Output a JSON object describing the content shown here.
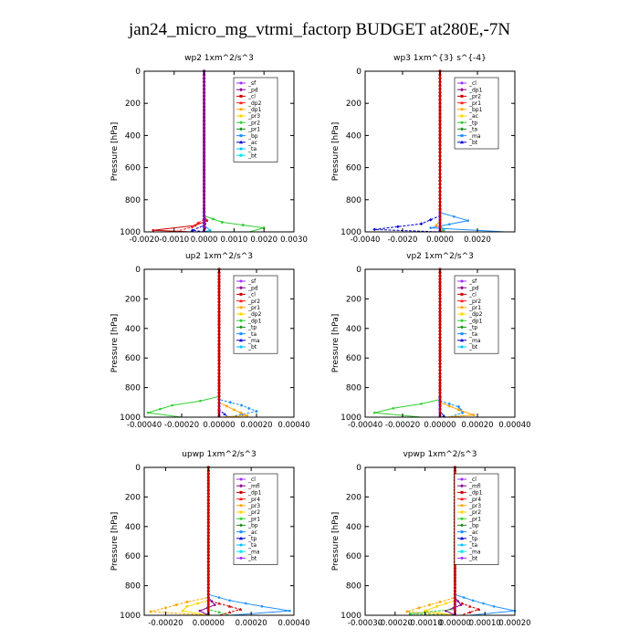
{
  "figure_title": "jan24_micro_mg_vtrmi_factorp  BUDGET at280E,-7N",
  "colors": {
    "legend_palette": [
      "#9b30ff",
      "#8b008b",
      "#cc0000",
      "#ff2020",
      "#ffa500",
      "#ffd700",
      "#32cd32",
      "#228b22",
      "#1e90ff",
      "#0000cd",
      "#00bfff",
      "#00e5ee"
    ]
  },
  "chart_data": [
    {
      "type": "line",
      "title": "wp2  1xm^2/s^3",
      "ylabel": "Pressure [hPa]",
      "ylim": [
        0,
        1000
      ],
      "y_inverted": true,
      "xlim": [
        -0.002,
        0.003
      ],
      "xticks": [
        "-0.0020",
        "-0.0010",
        "0.0000",
        "0.0010",
        "0.0020",
        "0.0030"
      ],
      "xtick_values": [
        -0.002,
        -0.001,
        0,
        0.001,
        0.002,
        0.003
      ],
      "yticks": [
        "0",
        "200",
        "400",
        "600",
        "800",
        "1000"
      ],
      "ytick_values": [
        0,
        200,
        400,
        600,
        800,
        1000
      ],
      "legend": [
        "_sf",
        "_pd",
        "_cl",
        "_dp2",
        "_dp1",
        "_pr3",
        "_pr2",
        "_pr1",
        "_bp",
        "_ac",
        "_ta",
        "_bt"
      ],
      "series": [
        {
          "name": "_dp1",
          "color": "#cc0000",
          "points": [
            [
              0,
              0
            ],
            [
              0,
              900
            ],
            [
              0.0001,
              930
            ],
            [
              -0.0003,
              960
            ],
            [
              -0.0017,
              990
            ],
            [
              -0.0004,
              1000
            ]
          ]
        },
        {
          "name": "_pr3",
          "color": "#ff2020",
          "points": [
            [
              0,
              0
            ],
            [
              0,
              920
            ],
            [
              -0.0004,
              970
            ],
            [
              -0.001,
              1000
            ]
          ]
        },
        {
          "name": "_ac",
          "color": "#32cd32",
          "points": [
            [
              0,
              0
            ],
            [
              0,
              900
            ],
            [
              0.0006,
              940
            ],
            [
              0.002,
              975
            ],
            [
              0.0015,
              1000
            ]
          ]
        },
        {
          "name": "_ta",
          "color": "#0000cd",
          "points": [
            [
              0,
              0
            ],
            [
              0,
              960
            ],
            [
              -0.0004,
              990
            ],
            [
              0,
              1000
            ]
          ]
        },
        {
          "name": "_bt",
          "color": "#00bfff",
          "points": [
            [
              0,
              0
            ],
            [
              0,
              960
            ],
            [
              0.0002,
              990
            ],
            [
              0,
              1000
            ]
          ]
        },
        {
          "name": "_pd",
          "color": "#8b008b",
          "points": [
            [
              0,
              0
            ],
            [
              0,
              900
            ],
            [
              3e-05,
              950
            ],
            [
              3e-05,
              1000
            ]
          ]
        }
      ]
    },
    {
      "type": "line",
      "title": "wp3  1xm^{3} s^{-4}",
      "ylabel": "Pressure [hPa]",
      "ylim": [
        0,
        1000
      ],
      "y_inverted": true,
      "xlim": [
        -0.004,
        0.004
      ],
      "xticks": [
        "-0.0040",
        "-0.0020",
        "0.0000",
        "0.0020"
      ],
      "xtick_values": [
        -0.004,
        -0.002,
        0,
        0.002
      ],
      "yticks": [
        "0",
        "200",
        "400",
        "600",
        "800",
        "1000"
      ],
      "ytick_values": [
        0,
        200,
        400,
        600,
        800,
        1000
      ],
      "legend": [
        "_cl",
        "_dp1",
        "_pr2",
        "_pr1",
        "_bp1",
        "_ac",
        "_tp",
        "_ta",
        "_ma",
        "_bt"
      ],
      "series": [
        {
          "name": "_tp",
          "color": "#1e90ff",
          "points": [
            [
              0,
              0
            ],
            [
              0,
              880
            ],
            [
              0.0015,
              930
            ],
            [
              -0.0005,
              975
            ],
            [
              0.0035,
              1000
            ]
          ]
        },
        {
          "name": "_ta",
          "color": "#0000cd",
          "points": [
            [
              0,
              0
            ],
            [
              0,
              900
            ],
            [
              -0.001,
              950
            ],
            [
              -0.0035,
              985
            ],
            [
              0,
              1000
            ]
          ]
        },
        {
          "name": "_pr2",
          "color": "#ffa500",
          "points": [
            [
              0,
              0
            ],
            [
              0,
              930
            ],
            [
              -0.0002,
              960
            ],
            [
              0.0002,
              990
            ],
            [
              0,
              1000
            ]
          ]
        },
        {
          "name": "_bt",
          "color": "#00bfff",
          "points": [
            [
              0,
              0
            ],
            [
              0,
              960
            ],
            [
              0.0002,
              985
            ],
            [
              0,
              1000
            ]
          ]
        },
        {
          "name": "_dp1",
          "color": "#cc0000",
          "points": [
            [
              0,
              0
            ],
            [
              0,
              1000
            ]
          ]
        }
      ]
    },
    {
      "type": "line",
      "title": "up2  1xm^2/s^3",
      "ylabel": "Pressure [hPa]",
      "ylim": [
        0,
        1000
      ],
      "y_inverted": true,
      "xlim": [
        -0.0004,
        0.0004
      ],
      "xticks": [
        "-0.00040",
        "-0.00020",
        "0.00000",
        "0.00020",
        "0.00040"
      ],
      "xtick_values": [
        -0.0004,
        -0.0002,
        0,
        0.0002,
        0.0004
      ],
      "yticks": [
        "0",
        "200",
        "400",
        "600",
        "800",
        "1000"
      ],
      "ytick_values": [
        0,
        200,
        400,
        600,
        800,
        1000
      ],
      "legend": [
        "_sf",
        "_pd",
        "_cl",
        "_pr2",
        "_pr1",
        "_dp2",
        "_dp1",
        "_tp",
        "_ta",
        "_ma",
        "_bt"
      ],
      "series": [
        {
          "name": "_dp1",
          "color": "#32cd32",
          "points": [
            [
              0,
              0
            ],
            [
              0,
              860
            ],
            [
              -0.0001,
              890
            ],
            [
              -0.00025,
              920
            ],
            [
              -0.00038,
              970
            ],
            [
              -0.0002,
              1000
            ]
          ]
        },
        {
          "name": "_tp",
          "color": "#1e90ff",
          "points": [
            [
              0,
              0
            ],
            [
              0,
              880
            ],
            [
              0.00012,
              920
            ],
            [
              0.0002,
              960
            ],
            [
              5e-05,
              1000
            ]
          ]
        },
        {
          "name": "_pr2",
          "color": "#ffa500",
          "points": [
            [
              0,
              0
            ],
            [
              0,
              900
            ],
            [
              8e-05,
              950
            ],
            [
              0.00015,
              990
            ],
            [
              0,
              1000
            ]
          ]
        },
        {
          "name": "_ta",
          "color": "#0000cd",
          "points": [
            [
              0,
              0
            ],
            [
              0,
              950
            ],
            [
              3e-05,
              980
            ],
            [
              5e-05,
              1000
            ]
          ]
        },
        {
          "name": "_cl",
          "color": "#cc0000",
          "points": [
            [
              0,
              0
            ],
            [
              0,
              1000
            ]
          ]
        }
      ]
    },
    {
      "type": "line",
      "title": "vp2  1xm^2/s^3",
      "ylabel": "Pressure [hPa]",
      "ylim": [
        0,
        1000
      ],
      "y_inverted": true,
      "xlim": [
        -0.0004,
        0.0004
      ],
      "xticks": [
        "-0.00040",
        "-0.00020",
        "0.00000",
        "0.00020",
        "0.00040"
      ],
      "xtick_values": [
        -0.0004,
        -0.0002,
        0,
        0.0002,
        0.0004
      ],
      "yticks": [
        "0",
        "200",
        "400",
        "600",
        "800",
        "1000"
      ],
      "ytick_values": [
        0,
        200,
        400,
        600,
        800,
        1000
      ],
      "legend": [
        "_sf",
        "_pd",
        "_cl",
        "_pr2",
        "_pr1",
        "_dp2",
        "_dp1",
        "_tp",
        "_ta",
        "_ma",
        "_bt"
      ],
      "series": [
        {
          "name": "_dp1",
          "color": "#32cd32",
          "points": [
            [
              0,
              0
            ],
            [
              0,
              880
            ],
            [
              -0.0001,
              910
            ],
            [
              -0.00025,
              940
            ],
            [
              -0.00035,
              970
            ],
            [
              -0.0001,
              1000
            ]
          ]
        },
        {
          "name": "_tp",
          "color": "#1e90ff",
          "points": [
            [
              0,
              0
            ],
            [
              0,
              890
            ],
            [
              0.0001,
              930
            ],
            [
              0.00012,
              970
            ],
            [
              5e-05,
              1000
            ]
          ]
        },
        {
          "name": "_pr2",
          "color": "#ffa500",
          "points": [
            [
              0,
              0
            ],
            [
              0,
              900
            ],
            [
              0.0001,
              950
            ],
            [
              0.00018,
              985
            ],
            [
              3e-05,
              1000
            ]
          ]
        },
        {
          "name": "_ta",
          "color": "#0000cd",
          "points": [
            [
              0,
              0
            ],
            [
              0,
              960
            ],
            [
              2e-05,
              990
            ],
            [
              3e-05,
              1000
            ]
          ]
        },
        {
          "name": "_cl",
          "color": "#cc0000",
          "points": [
            [
              0,
              0
            ],
            [
              0,
              1000
            ]
          ]
        }
      ]
    },
    {
      "type": "line",
      "title": "upwp  1xm^2/s^3",
      "ylabel": "Pressure [hPa]",
      "ylim": [
        0,
        1000
      ],
      "y_inverted": true,
      "xlim": [
        -0.0003,
        0.0004
      ],
      "xticks": [
        "-0.00020",
        "0.00000",
        "0.00020",
        "0.00040"
      ],
      "xtick_values": [
        -0.0002,
        0,
        0.0002,
        0.0004
      ],
      "yticks": [
        "0",
        "200",
        "400",
        "600",
        "800",
        "1000"
      ],
      "ytick_values": [
        0,
        200,
        400,
        600,
        800,
        1000
      ],
      "legend": [
        "_cl",
        "_mfl",
        "_dp1",
        "_pr4",
        "_pr3",
        "_pr2",
        "_pr1",
        "_bp",
        "_ac",
        "_tp",
        "_ta",
        "_ma",
        "_bt"
      ],
      "series": [
        {
          "name": "_tp",
          "color": "#1e90ff",
          "points": [
            [
              0,
              0
            ],
            [
              0,
              860
            ],
            [
              0.0001,
              900
            ],
            [
              0.00025,
              940
            ],
            [
              0.00038,
              970
            ],
            [
              0.0001,
              1000
            ]
          ]
        },
        {
          "name": "_pr2",
          "color": "#ffa500",
          "points": [
            [
              0,
              0
            ],
            [
              0,
              880
            ],
            [
              -0.0001,
              910
            ],
            [
              -0.0002,
              950
            ],
            [
              -0.00027,
              975
            ],
            [
              0,
              1000
            ]
          ]
        },
        {
          "name": "_pr1",
          "color": "#ffd700",
          "points": [
            [
              0,
              0
            ],
            [
              0,
              900
            ],
            [
              -0.0001,
              940
            ],
            [
              -0.00012,
              970
            ],
            [
              0,
              1000
            ]
          ]
        },
        {
          "name": "_dp1",
          "color": "#cc0000",
          "points": [
            [
              0,
              0
            ],
            [
              0,
              900
            ],
            [
              0.0001,
              940
            ],
            [
              0.00015,
              960
            ],
            [
              5e-05,
              1000
            ]
          ]
        },
        {
          "name": "_mfl",
          "color": "#8b008b",
          "points": [
            [
              0,
              0
            ],
            [
              0,
              880
            ],
            [
              3e-05,
              930
            ],
            [
              -4e-05,
              970
            ],
            [
              0,
              1000
            ]
          ]
        },
        {
          "name": "_ac",
          "color": "#32cd32",
          "points": [
            [
              0,
              0
            ],
            [
              0,
              960
            ],
            [
              0.0001,
              1000
            ]
          ]
        }
      ]
    },
    {
      "type": "line",
      "title": "vpwp  1xm^2/s^3",
      "ylabel": "Pressure [hPa]",
      "ylim": [
        0,
        1000
      ],
      "y_inverted": true,
      "xlim": [
        -0.0003,
        0.0002
      ],
      "xticks": [
        "-0.00030",
        "-0.00020",
        "-0.00010",
        "0.00000",
        "0.00010",
        "0.00020"
      ],
      "xtick_values": [
        -0.0003,
        -0.0002,
        -0.0001,
        0,
        0.0001,
        0.0002
      ],
      "yticks": [
        "0",
        "200",
        "400",
        "600",
        "800",
        "1000"
      ],
      "ytick_values": [
        0,
        200,
        400,
        600,
        800,
        1000
      ],
      "legend": [
        "_cl",
        "_mfl",
        "_dp1",
        "_pr4",
        "_pr3",
        "_pr2",
        "_pr1",
        "_bp",
        "_ac",
        "_tp",
        "_ta",
        "_ma",
        "_bt"
      ],
      "series": [
        {
          "name": "_tp",
          "color": "#1e90ff",
          "points": [
            [
              0,
              0
            ],
            [
              0,
              860
            ],
            [
              6e-05,
              900
            ],
            [
              0.00013,
              940
            ],
            [
              0.0002,
              970
            ],
            [
              5e-05,
              1000
            ]
          ]
        },
        {
          "name": "_pr2",
          "color": "#ffa500",
          "points": [
            [
              0,
              0
            ],
            [
              0,
              880
            ],
            [
              -5e-05,
              910
            ],
            [
              -0.00012,
              950
            ],
            [
              -0.00016,
              975
            ],
            [
              0,
              1000
            ]
          ]
        },
        {
          "name": "_pr1",
          "color": "#ffd700",
          "points": [
            [
              0,
              0
            ],
            [
              0,
              900
            ],
            [
              -6e-05,
              940
            ],
            [
              -0.0001,
              970
            ],
            [
              0,
              1000
            ]
          ]
        },
        {
          "name": "_dp1",
          "color": "#cc0000",
          "points": [
            [
              0,
              0
            ],
            [
              0,
              900
            ],
            [
              5e-05,
              940
            ],
            [
              8e-05,
              960
            ],
            [
              2e-05,
              1000
            ]
          ]
        },
        {
          "name": "_mfl",
          "color": "#8b008b",
          "points": [
            [
              0,
              0
            ],
            [
              0,
              880
            ],
            [
              2e-05,
              930
            ],
            [
              -3e-05,
              970
            ],
            [
              0,
              1000
            ]
          ]
        },
        {
          "name": "_ac",
          "color": "#32cd32",
          "points": [
            [
              0,
              0
            ],
            [
              0,
              960
            ],
            [
              -0.00015,
              990
            ],
            [
              0,
              1000
            ]
          ]
        }
      ]
    }
  ]
}
